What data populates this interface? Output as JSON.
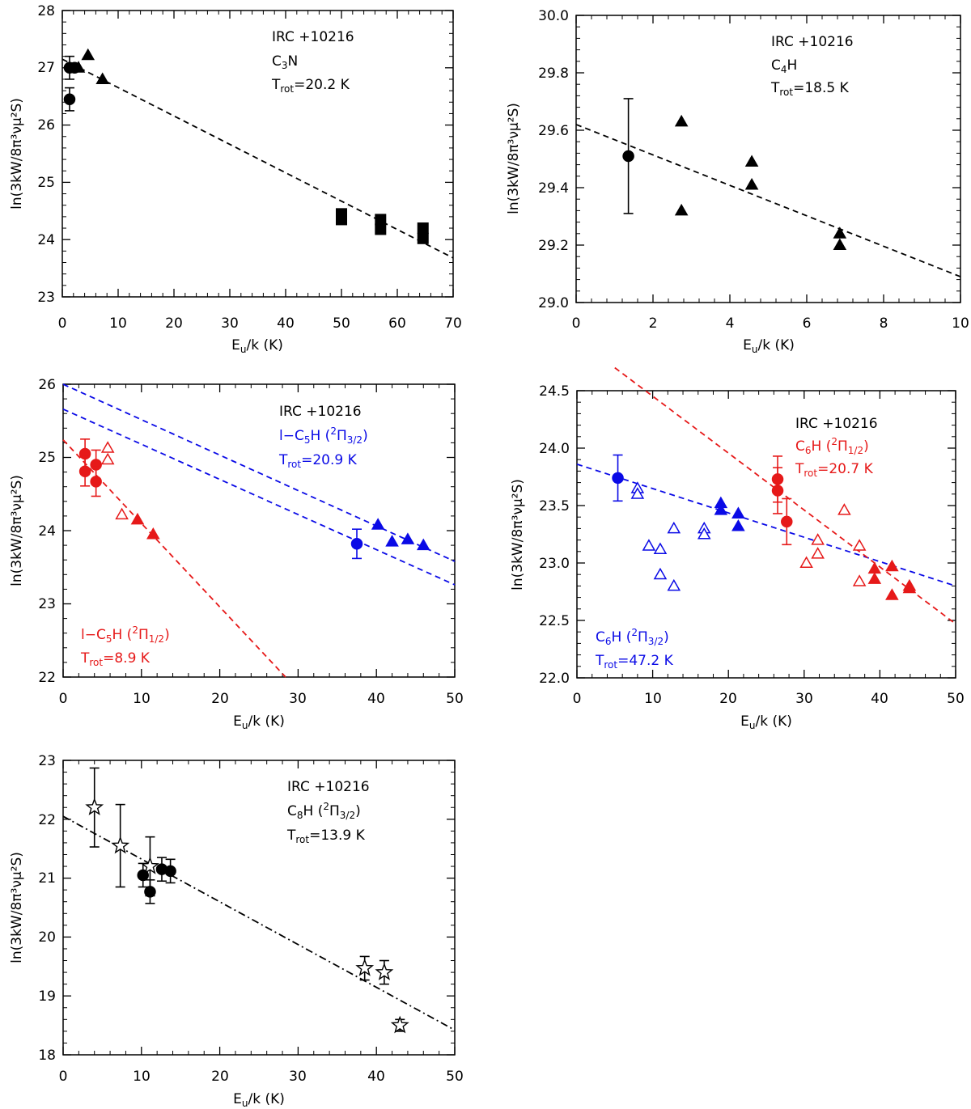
{
  "colors": {
    "black": "#000000",
    "blue": "#0a0ae6",
    "red": "#e61919"
  },
  "chart_data": [
    {
      "type": "scatter",
      "id": "c3n",
      "xlabel_main": "E",
      "xlabel_sub": "u",
      "xlabel_rest": "/k (K)",
      "ylabel": "ln(3kW/8π³νμ²S)",
      "xlim": [
        0,
        70
      ],
      "ylim": [
        23,
        28
      ],
      "xticks": [
        0,
        10,
        20,
        30,
        40,
        50,
        60,
        70
      ],
      "xtick_labels": [
        "0",
        "10",
        "20",
        "30",
        "40",
        "50",
        "60",
        "70"
      ],
      "yticks": [
        23,
        24,
        25,
        26,
        27,
        28
      ],
      "ytick_labels": [
        "23",
        "24",
        "25",
        "26",
        "27",
        "28"
      ],
      "source": "IRC +10216",
      "molecule": {
        "prefix": "C",
        "sub": "3",
        "rest": "N"
      },
      "trot": {
        "label": "T",
        "sub": "rot",
        "value": "=20.2 K"
      },
      "series": [
        {
          "name": "C3N circles",
          "marker": "circle",
          "filled": true,
          "color": "#000000",
          "points": [
            [
              1.3,
              27.0,
              0.2
            ],
            [
              2.2,
              27.0,
              0
            ],
            [
              1.3,
              26.45,
              0.2
            ]
          ]
        },
        {
          "name": "C3N triangles",
          "marker": "triangle",
          "filled": true,
          "color": "#000000",
          "points": [
            [
              2.9,
              27.0
            ],
            [
              4.6,
              27.22
            ],
            [
              7.2,
              26.8
            ]
          ]
        },
        {
          "name": "C3N squares",
          "marker": "square",
          "filled": true,
          "color": "#000000",
          "points": [
            [
              50.0,
              24.45
            ],
            [
              50.0,
              24.35
            ],
            [
              57.0,
              24.35
            ],
            [
              57.0,
              24.18
            ],
            [
              64.6,
              24.2
            ],
            [
              64.6,
              24.02
            ]
          ]
        }
      ],
      "fits": [
        {
          "x": [
            0,
            70
          ],
          "y": [
            27.15,
            23.68
          ],
          "style": "dashed",
          "color": "#000000"
        }
      ]
    },
    {
      "type": "scatter",
      "id": "c4h",
      "xlabel_main": "E",
      "xlabel_sub": "u",
      "xlabel_rest": "/k (K)",
      "ylabel": "ln(3kW/8π³νμ²S)",
      "xlim": [
        0,
        10
      ],
      "ylim": [
        29.0,
        30.0
      ],
      "xticks": [
        0,
        2,
        4,
        6,
        8,
        10
      ],
      "xtick_labels": [
        "0",
        "2",
        "4",
        "6",
        "8",
        "10"
      ],
      "yticks": [
        29.0,
        29.2,
        29.4,
        29.6,
        29.8,
        30.0
      ],
      "ytick_labels": [
        "29.0",
        "29.2",
        "29.4",
        "29.6",
        "29.8",
        "30.0"
      ],
      "source": "IRC +10216",
      "molecule": {
        "prefix": "C",
        "sub": "4",
        "rest": "H"
      },
      "trot": {
        "label": "T",
        "sub": "rot",
        "value": "=18.5 K"
      },
      "series": [
        {
          "name": "C4H circle",
          "marker": "circle",
          "filled": true,
          "color": "#000000",
          "points": [
            [
              1.36,
              29.51,
              0.2
            ]
          ]
        },
        {
          "name": "C4H triangles",
          "marker": "triangle",
          "filled": true,
          "color": "#000000",
          "points": [
            [
              2.74,
              29.63
            ],
            [
              2.74,
              29.32
            ],
            [
              4.57,
              29.49
            ],
            [
              4.57,
              29.41
            ],
            [
              6.86,
              29.24
            ],
            [
              6.86,
              29.2
            ]
          ]
        }
      ],
      "fits": [
        {
          "x": [
            0,
            10
          ],
          "y": [
            29.62,
            29.09
          ],
          "style": "dashed",
          "color": "#000000"
        }
      ]
    },
    {
      "type": "scatter",
      "id": "c5h",
      "xlabel_main": "E",
      "xlabel_sub": "u",
      "xlabel_rest": "/k (K)",
      "ylabel": "ln(3kW/8π³νμ²S)",
      "xlim": [
        0,
        50
      ],
      "ylim": [
        22,
        26
      ],
      "xticks": [
        0,
        10,
        20,
        30,
        40,
        50
      ],
      "xtick_labels": [
        "0",
        "10",
        "20",
        "30",
        "40",
        "50"
      ],
      "yticks": [
        22,
        23,
        24,
        25,
        26
      ],
      "ytick_labels": [
        "22",
        "23",
        "24",
        "25",
        "26"
      ],
      "source": "IRC +10216",
      "blue_label": {
        "prefix": "l−C",
        "sub": "5",
        "rest": "H (",
        "sup": "2",
        "pi": "Π",
        "pisub": "3/2",
        "close": ")"
      },
      "blue_trot": {
        "label": "T",
        "sub": "rot",
        "value": "=20.9 K"
      },
      "red_label": {
        "prefix": "l−C",
        "sub": "5",
        "rest": "H (",
        "sup": "2",
        "pi": "Π",
        "pisub": "1/2",
        "close": ")"
      },
      "red_trot": {
        "label": "T",
        "sub": "rot",
        "value": "=8.9 K"
      },
      "series": [
        {
          "name": "2Pi3/2 circle",
          "marker": "circle",
          "filled": true,
          "color": "#0a0ae6",
          "points": [
            [
              37.5,
              23.82,
              0.2
            ]
          ]
        },
        {
          "name": "2Pi3/2 triangles",
          "marker": "triangle",
          "filled": true,
          "color": "#0a0ae6",
          "points": [
            [
              40.2,
              24.08
            ],
            [
              42.0,
              23.85
            ],
            [
              44.0,
              23.88
            ],
            [
              46.0,
              23.8
            ]
          ]
        },
        {
          "name": "2Pi1/2 circles",
          "marker": "circle",
          "filled": true,
          "color": "#e61919",
          "points": [
            [
              2.8,
              25.05,
              0.2
            ],
            [
              2.8,
              24.81,
              0.2
            ],
            [
              4.2,
              24.9,
              0.2
            ],
            [
              4.2,
              24.67,
              0.2
            ]
          ]
        },
        {
          "name": "2Pi1/2 open triangles",
          "marker": "triangle",
          "filled": false,
          "color": "#e61919",
          "points": [
            [
              5.7,
              25.13
            ],
            [
              5.7,
              24.97
            ],
            [
              7.5,
              24.22
            ]
          ]
        },
        {
          "name": "2Pi1/2 filled triangles",
          "marker": "triangle",
          "filled": true,
          "color": "#e61919",
          "points": [
            [
              9.5,
              24.15
            ],
            [
              11.5,
              23.95
            ]
          ]
        }
      ],
      "fits": [
        {
          "x": [
            0,
            50
          ],
          "y": [
            26.0,
            23.58
          ],
          "style": "dashed",
          "color": "#0a0ae6"
        },
        {
          "x": [
            0,
            50
          ],
          "y": [
            25.66,
            23.26
          ],
          "style": "dashed",
          "color": "#0a0ae6"
        },
        {
          "x": [
            0,
            28.4
          ],
          "y": [
            25.24,
            22.0
          ],
          "style": "dashed",
          "color": "#e61919"
        }
      ]
    },
    {
      "type": "scatter",
      "id": "c6h",
      "xlabel_main": "E",
      "xlabel_sub": "u",
      "xlabel_rest": "/k (K)",
      "ylabel": "ln(3kW/8π³νμ²S)",
      "xlim": [
        0,
        50
      ],
      "ylim": [
        22.0,
        24.5
      ],
      "xticks": [
        0,
        10,
        20,
        30,
        40,
        50
      ],
      "xtick_labels": [
        "0",
        "10",
        "20",
        "30",
        "40",
        "50"
      ],
      "yticks": [
        22.0,
        22.5,
        23.0,
        23.5,
        24.0,
        24.5
      ],
      "ytick_labels": [
        "22.0",
        "22.5",
        "23.0",
        "23.5",
        "24.0",
        "24.5"
      ],
      "source": "IRC +10216",
      "red_label": {
        "prefix": "C",
        "sub": "6",
        "rest": "H (",
        "sup": "2",
        "pi": "Π",
        "pisub": "1/2",
        "close": ")"
      },
      "red_trot": {
        "label": "T",
        "sub": "rot",
        "value": "=20.7 K"
      },
      "blue_label": {
        "prefix": "C",
        "sub": "6",
        "rest": "H (",
        "sup": "2",
        "pi": "Π",
        "pisub": "3/2",
        "close": ")"
      },
      "blue_trot": {
        "label": "T",
        "sub": "rot",
        "value": "=47.2 K"
      },
      "series": [
        {
          "name": "2Pi3/2 circle",
          "marker": "circle",
          "filled": true,
          "color": "#0a0ae6",
          "points": [
            [
              5.4,
              23.74,
              0.2
            ]
          ]
        },
        {
          "name": "2Pi3/2 open triangles",
          "marker": "triangle",
          "filled": false,
          "color": "#0a0ae6",
          "points": [
            [
              8.0,
              23.65
            ],
            [
              8.0,
              23.6
            ],
            [
              9.5,
              23.15
            ],
            [
              11.0,
              23.12
            ],
            [
              11.0,
              22.9
            ],
            [
              12.8,
              23.3
            ],
            [
              12.8,
              22.8
            ],
            [
              16.8,
              23.3
            ],
            [
              16.8,
              23.25
            ]
          ]
        },
        {
          "name": "2Pi3/2 filled triangles",
          "marker": "triangle",
          "filled": true,
          "color": "#0a0ae6",
          "points": [
            [
              19.0,
              23.52
            ],
            [
              19.0,
              23.46
            ],
            [
              21.3,
              23.43
            ],
            [
              21.3,
              23.32
            ]
          ]
        },
        {
          "name": "2Pi1/2 circles",
          "marker": "circle",
          "filled": true,
          "color": "#e61919",
          "points": [
            [
              26.5,
              23.73,
              0.2
            ],
            [
              26.5,
              23.63,
              0.2
            ],
            [
              27.7,
              23.36,
              0.2
            ]
          ]
        },
        {
          "name": "2Pi1/2 open triangles",
          "marker": "triangle",
          "filled": false,
          "color": "#e61919",
          "points": [
            [
              30.3,
              23.0
            ],
            [
              31.8,
              23.2
            ],
            [
              31.8,
              23.08
            ],
            [
              35.3,
              23.46
            ],
            [
              37.3,
              23.15
            ],
            [
              37.3,
              22.84
            ]
          ]
        },
        {
          "name": "2Pi1/2 filled triangles",
          "marker": "triangle",
          "filled": true,
          "color": "#e61919",
          "points": [
            [
              39.3,
              22.95
            ],
            [
              39.3,
              22.86
            ],
            [
              41.6,
              22.97
            ],
            [
              41.6,
              22.72
            ],
            [
              43.9,
              22.8
            ],
            [
              43.9,
              22.78
            ]
          ]
        }
      ],
      "fits": [
        {
          "x": [
            0,
            50
          ],
          "y": [
            23.86,
            22.8
          ],
          "style": "dashed",
          "color": "#0a0ae6"
        },
        {
          "x": [
            5,
            50
          ],
          "y": [
            24.7,
            22.47
          ],
          "style": "dashed",
          "color": "#e61919"
        }
      ]
    },
    {
      "type": "scatter",
      "id": "c8h",
      "xlabel_main": "E",
      "xlabel_sub": "u",
      "xlabel_rest": "/k (K)",
      "ylabel": "ln(3kW/8π³νμ²S)",
      "xlim": [
        0,
        50
      ],
      "ylim": [
        18,
        23
      ],
      "xticks": [
        0,
        10,
        20,
        30,
        40,
        50
      ],
      "xtick_labels": [
        "0",
        "10",
        "20",
        "30",
        "40",
        "50"
      ],
      "yticks": [
        18,
        19,
        20,
        21,
        22,
        23
      ],
      "ytick_labels": [
        "18",
        "19",
        "20",
        "21",
        "22",
        "23"
      ],
      "source": "IRC +10216",
      "molecule_label": {
        "prefix": "C",
        "sub": "8",
        "rest": "H (",
        "sup": "2",
        "pi": "Π",
        "pisub": "3/2",
        "close": ")"
      },
      "trot": {
        "label": "T",
        "sub": "rot",
        "value": "=13.9 K"
      },
      "series": [
        {
          "name": "C8H stars",
          "marker": "star",
          "filled": false,
          "color": "#000000",
          "points": [
            [
              4.0,
              22.2,
              0.67
            ],
            [
              7.3,
              21.55,
              0.7
            ],
            [
              11.1,
              21.2,
              0.5
            ],
            [
              38.5,
              19.47,
              0.2
            ],
            [
              41.0,
              19.4,
              0.2
            ],
            [
              43.0,
              18.5,
              0.1
            ]
          ]
        },
        {
          "name": "C8H circles",
          "marker": "circle",
          "filled": true,
          "color": "#000000",
          "points": [
            [
              10.2,
              21.05,
              0.2
            ],
            [
              11.1,
              20.77,
              0.2
            ],
            [
              12.6,
              21.15,
              0.2
            ],
            [
              13.7,
              21.12,
              0.2
            ]
          ]
        }
      ],
      "fits": [
        {
          "x": [
            0,
            50
          ],
          "y": [
            22.05,
            18.42
          ],
          "style": "dashdot",
          "color": "#000000"
        }
      ]
    }
  ]
}
